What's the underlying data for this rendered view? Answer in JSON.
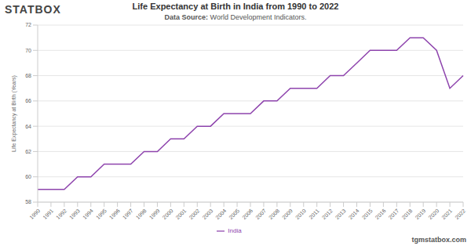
{
  "chart_data": {
    "type": "line",
    "title": "Life Expectancy at Birth in India from 1990 to 2022",
    "subtitle": "Data Source: World Development Indicators.",
    "annotations": [
      "STATBOX",
      "tgmstatbox.com"
    ],
    "y_label": "Life Expectancy at Birth (Years)",
    "categories": [
      "1990",
      "1991",
      "1992",
      "1993",
      "1994",
      "1995",
      "1996",
      "1997",
      "1998",
      "1999",
      "2000",
      "2001",
      "2002",
      "2003",
      "2004",
      "2005",
      "2006",
      "2007",
      "2008",
      "2009",
      "2010",
      "2011",
      "2012",
      "2013",
      "2014",
      "2015",
      "2016",
      "2017",
      "2018",
      "2019",
      "2020",
      "2021",
      "2022"
    ],
    "series": [
      {
        "name": "India",
        "color": "#8e44ad",
        "values": [
          59,
          59,
          59,
          60,
          60,
          61,
          61,
          61,
          62,
          62,
          63,
          63,
          64,
          64,
          65,
          65,
          65,
          66,
          66,
          67,
          67,
          67,
          68,
          68,
          69,
          70,
          70,
          70,
          71,
          71,
          70,
          67,
          68
        ]
      }
    ],
    "ylim": [
      58,
      72
    ],
    "yticks": [
      58,
      60,
      62,
      64,
      66,
      68,
      70,
      72
    ],
    "grid": true,
    "legend": "bottom"
  }
}
